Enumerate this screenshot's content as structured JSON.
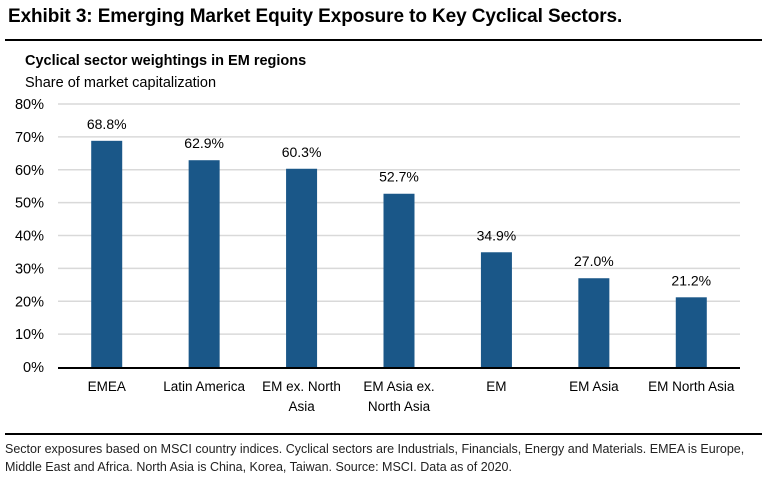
{
  "exhibit_title": "Exhibit 3: Emerging Market Equity Exposure to Key Cyclical Sectors.",
  "footnote": "Sector exposures based on MSCI country indices. Cyclical sectors are Industrials, Financials, Energy and Materials. EMEA is Europe, Middle East and Africa. North Asia is China, Korea, Taiwan. Source: MSCI. Data as of 2020.",
  "colors": {
    "bar": "#1a5788",
    "gridline": "#d9d9d9",
    "axis": "#000000"
  },
  "chart_data": {
    "type": "bar",
    "title": "Cyclical sector weightings in EM regions",
    "subtitle": "Share of market capitalization",
    "xlabel": "",
    "ylabel": "",
    "ylim": [
      0,
      80
    ],
    "yticks": [
      0,
      10,
      20,
      30,
      40,
      50,
      60,
      70,
      80
    ],
    "ytick_labels": [
      "0%",
      "10%",
      "20%",
      "30%",
      "40%",
      "50%",
      "60%",
      "70%",
      "80%"
    ],
    "grid": true,
    "legend": "none",
    "categories": [
      "EMEA",
      "Latin America",
      "EM ex. North Asia",
      "EM Asia ex. North Asia",
      "EM",
      "EM Asia",
      "EM North Asia"
    ],
    "category_lines": [
      [
        "EMEA"
      ],
      [
        "Latin America"
      ],
      [
        "EM ex. North",
        "Asia"
      ],
      [
        "EM Asia ex.",
        "North Asia"
      ],
      [
        "EM"
      ],
      [
        "EM Asia"
      ],
      [
        "EM North Asia"
      ]
    ],
    "values": [
      68.8,
      62.9,
      60.3,
      52.7,
      34.9,
      27.0,
      21.2
    ],
    "data_labels": [
      "68.8%",
      "62.9%",
      "60.3%",
      "52.7%",
      "34.9%",
      "27.0%",
      "21.2%"
    ],
    "unit": "%"
  }
}
